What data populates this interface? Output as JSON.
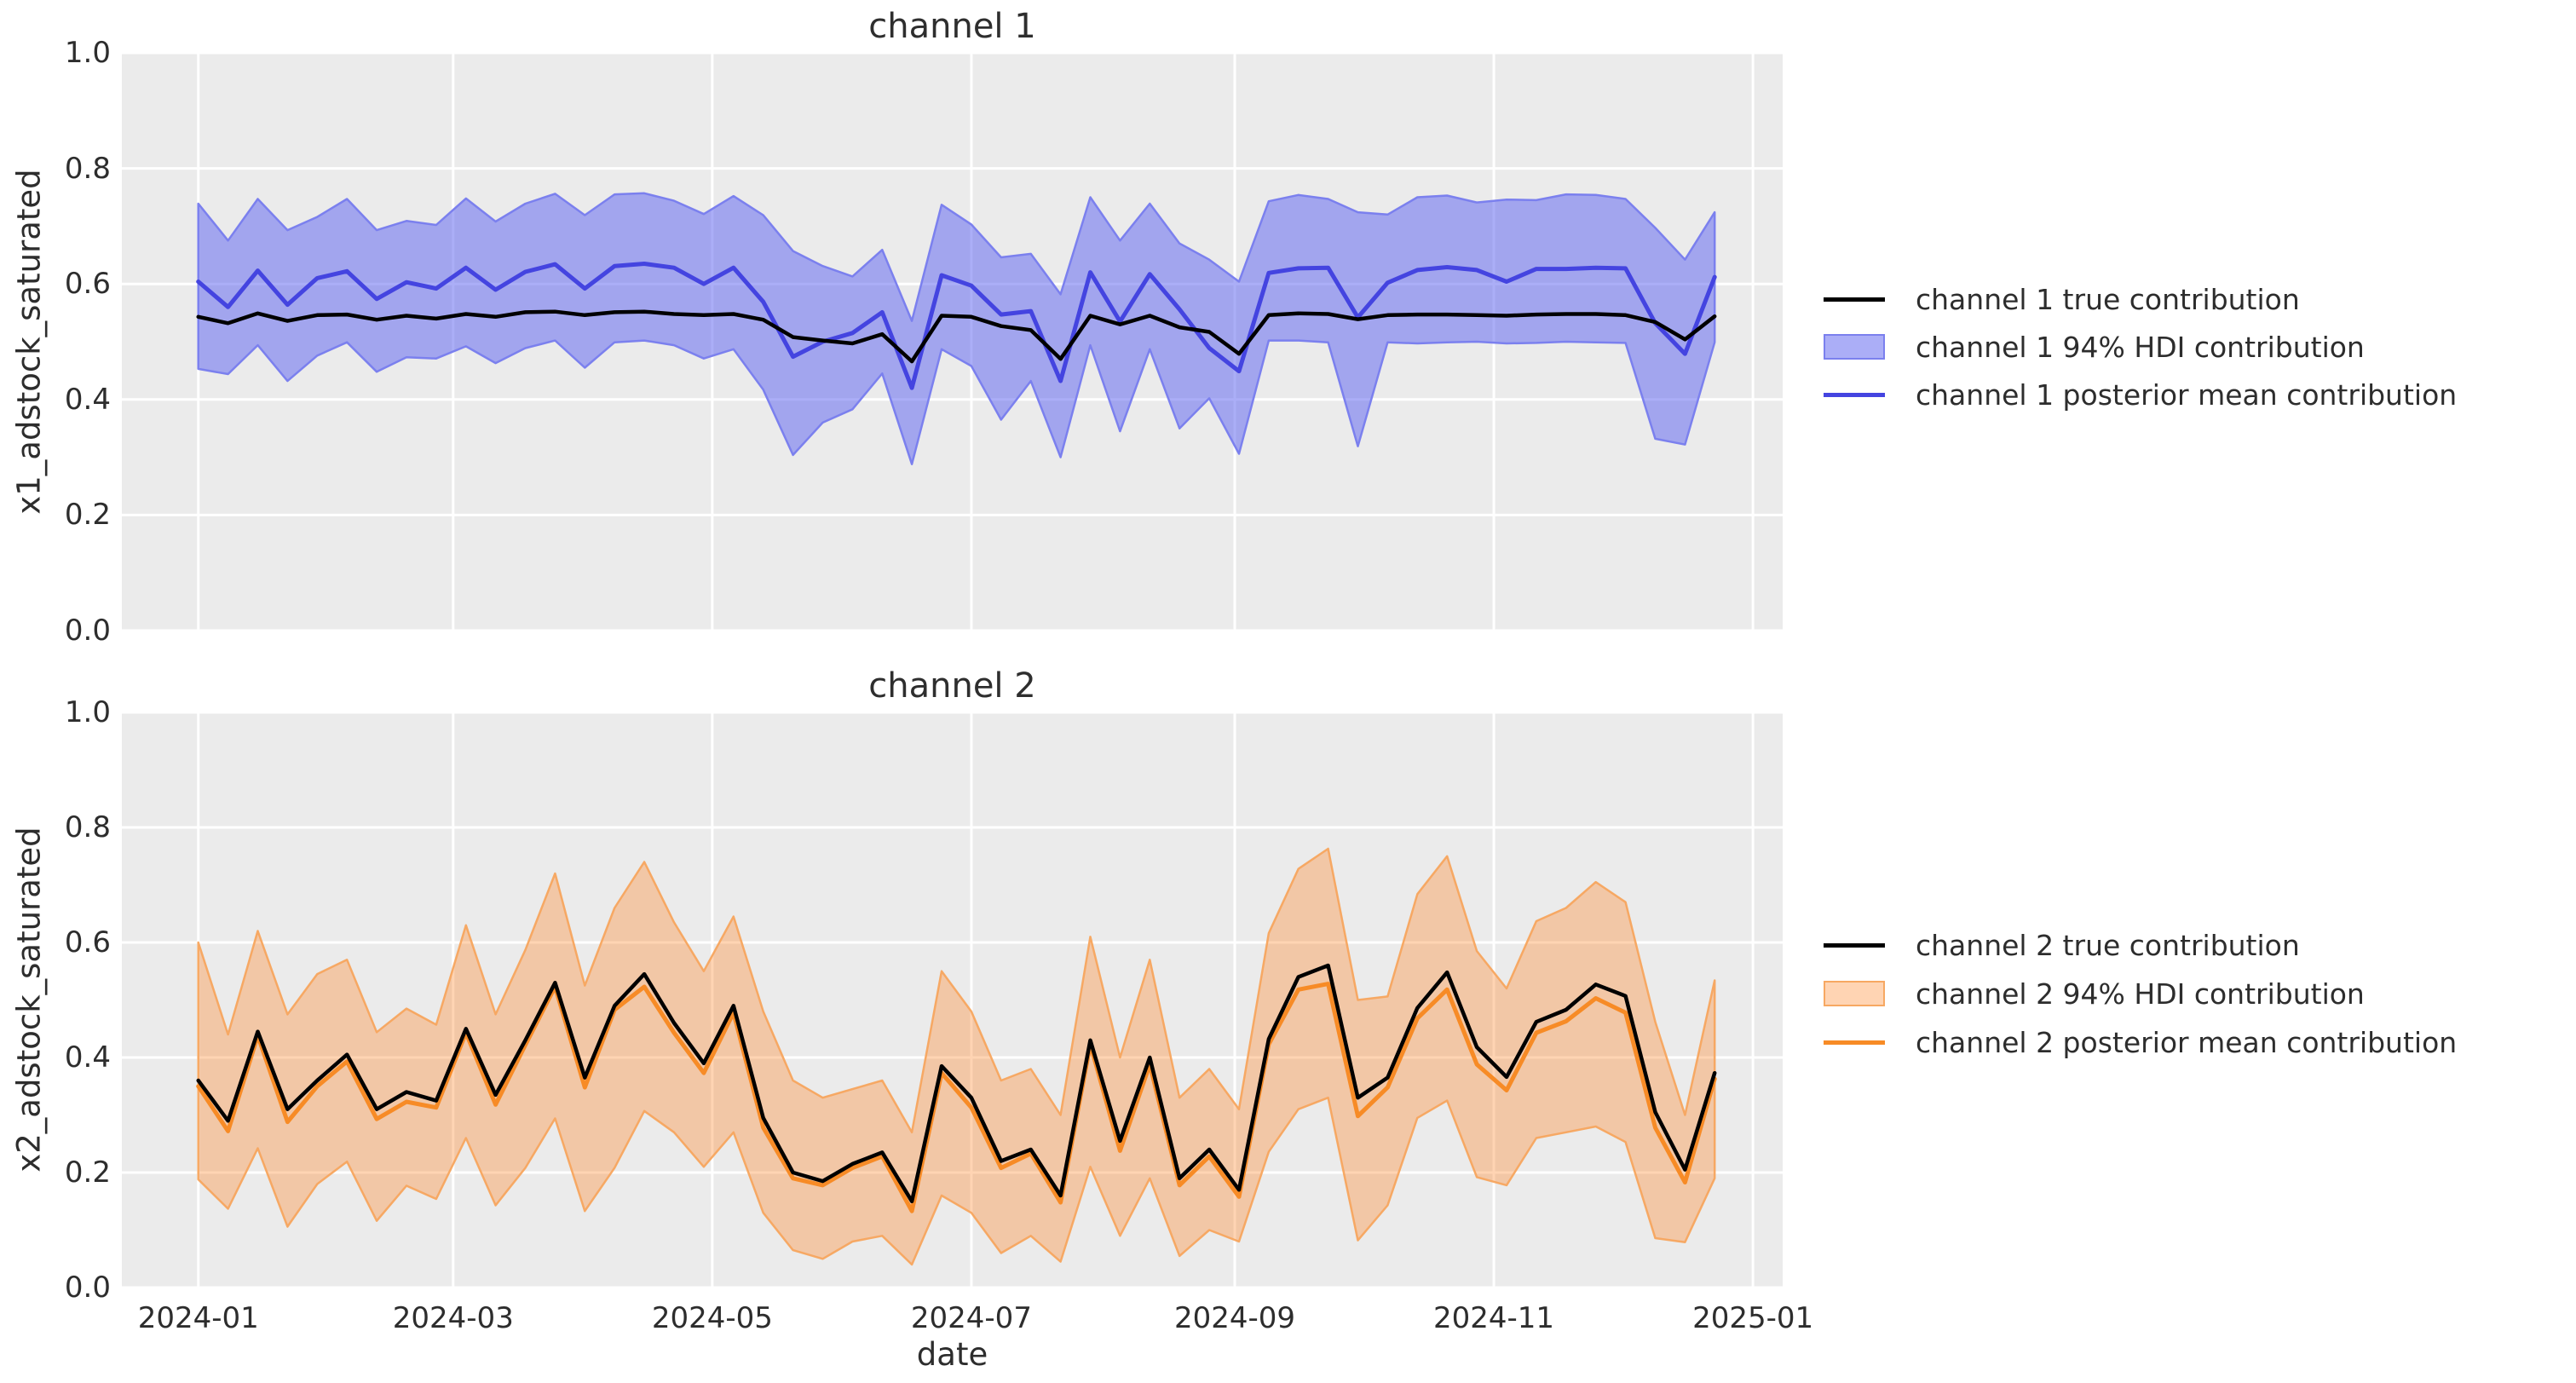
{
  "figure": {
    "xlabel": "date",
    "background": "#ffffff",
    "axes_background": "#ebebeb",
    "grid_color": "#ffffff",
    "text_color": "#2d2d2d",
    "true_line_color": "#000000"
  },
  "chart_data": [
    {
      "type": "line",
      "title": "channel 1",
      "ylabel": "x1_adstock_saturated",
      "ylim": [
        0.0,
        1.0
      ],
      "yticks": [
        "1.0",
        "0.8",
        "0.6",
        "0.4",
        "0.2",
        "0.0"
      ],
      "grid": true,
      "legend_position": "right",
      "legend": [
        "channel 1 true contribution",
        "channel 1 94% HDI contribution",
        "channel 1 posterior mean contribution"
      ],
      "mean_color": "#4444e0",
      "band_fill": "rgba(102,108,240,0.55)",
      "band_edge": "#7b80ee",
      "x": [
        "2024-01-01",
        "2024-01-08",
        "2024-01-15",
        "2024-01-22",
        "2024-01-29",
        "2024-02-05",
        "2024-02-12",
        "2024-02-19",
        "2024-02-26",
        "2024-03-04",
        "2024-03-11",
        "2024-03-18",
        "2024-03-25",
        "2024-04-01",
        "2024-04-08",
        "2024-04-15",
        "2024-04-22",
        "2024-04-29",
        "2024-05-06",
        "2024-05-13",
        "2024-05-20",
        "2024-05-27",
        "2024-06-03",
        "2024-06-10",
        "2024-06-17",
        "2024-06-24",
        "2024-07-01",
        "2024-07-08",
        "2024-07-15",
        "2024-07-22",
        "2024-07-29",
        "2024-08-05",
        "2024-08-12",
        "2024-08-19",
        "2024-08-26",
        "2024-09-02",
        "2024-09-09",
        "2024-09-16",
        "2024-09-23",
        "2024-09-30",
        "2024-10-07",
        "2024-10-14",
        "2024-10-21",
        "2024-10-28",
        "2024-11-04",
        "2024-11-11",
        "2024-11-18",
        "2024-11-25",
        "2024-12-02",
        "2024-12-09",
        "2024-12-16",
        "2024-12-23"
      ],
      "series": [
        {
          "name": "channel 1 true contribution",
          "values": [
            0.543,
            0.532,
            0.549,
            0.536,
            0.546,
            0.547,
            0.538,
            0.545,
            0.54,
            0.548,
            0.543,
            0.551,
            0.552,
            0.546,
            0.551,
            0.552,
            0.548,
            0.546,
            0.548,
            0.538,
            0.508,
            0.502,
            0.497,
            0.513,
            0.466,
            0.545,
            0.543,
            0.527,
            0.52,
            0.47,
            0.545,
            0.53,
            0.545,
            0.525,
            0.517,
            0.479,
            0.546,
            0.549,
            0.548,
            0.539,
            0.546,
            0.547,
            0.547,
            0.546,
            0.545,
            0.547,
            0.548,
            0.548,
            0.546,
            0.534,
            0.504,
            0.544
          ]
        },
        {
          "name": "channel 1 posterior mean contribution",
          "values": [
            0.604,
            0.56,
            0.623,
            0.564,
            0.61,
            0.622,
            0.574,
            0.603,
            0.592,
            0.628,
            0.59,
            0.621,
            0.634,
            0.592,
            0.631,
            0.635,
            0.628,
            0.6,
            0.628,
            0.569,
            0.474,
            0.5,
            0.515,
            0.551,
            0.42,
            0.615,
            0.597,
            0.547,
            0.553,
            0.432,
            0.62,
            0.535,
            0.617,
            0.556,
            0.489,
            0.449,
            0.619,
            0.627,
            0.628,
            0.542,
            0.602,
            0.624,
            0.629,
            0.624,
            0.604,
            0.626,
            0.626,
            0.628,
            0.627,
            0.532,
            0.479,
            0.612
          ]
        },
        {
          "name": "channel 1 94% HDI lower",
          "values": [
            0.453,
            0.444,
            0.494,
            0.432,
            0.476,
            0.499,
            0.448,
            0.473,
            0.471,
            0.492,
            0.463,
            0.489,
            0.502,
            0.455,
            0.499,
            0.502,
            0.494,
            0.471,
            0.487,
            0.417,
            0.304,
            0.36,
            0.383,
            0.445,
            0.288,
            0.487,
            0.458,
            0.365,
            0.432,
            0.3,
            0.494,
            0.345,
            0.487,
            0.35,
            0.402,
            0.306,
            0.502,
            0.502,
            0.499,
            0.319,
            0.499,
            0.497,
            0.499,
            0.5,
            0.497,
            0.498,
            0.5,
            0.499,
            0.498,
            0.332,
            0.322,
            0.499
          ]
        },
        {
          "name": "channel 1 94% HDI upper",
          "values": [
            0.739,
            0.675,
            0.747,
            0.693,
            0.716,
            0.747,
            0.693,
            0.709,
            0.702,
            0.748,
            0.708,
            0.739,
            0.756,
            0.719,
            0.755,
            0.757,
            0.744,
            0.721,
            0.752,
            0.719,
            0.657,
            0.631,
            0.613,
            0.659,
            0.536,
            0.737,
            0.703,
            0.646,
            0.652,
            0.582,
            0.75,
            0.675,
            0.739,
            0.67,
            0.642,
            0.604,
            0.743,
            0.754,
            0.747,
            0.724,
            0.72,
            0.75,
            0.753,
            0.741,
            0.746,
            0.745,
            0.755,
            0.754,
            0.747,
            0.697,
            0.642,
            0.724
          ]
        }
      ]
    },
    {
      "type": "line",
      "title": "channel 2",
      "ylabel": "x2_adstock_saturated",
      "ylim": [
        0.0,
        1.0
      ],
      "yticks": [
        "1.0",
        "0.8",
        "0.6",
        "0.4",
        "0.2",
        "0.0"
      ],
      "grid": true,
      "legend_position": "right",
      "legend": [
        "channel 2 true contribution",
        "channel 2 94% HDI contribution",
        "channel 2 posterior mean contribution"
      ],
      "mean_color": "#f78b26",
      "band_fill": "rgba(255,136,43,0.36)",
      "band_edge": "rgba(247,165,94,0.95)",
      "x": [
        "2024-01-01",
        "2024-01-08",
        "2024-01-15",
        "2024-01-22",
        "2024-01-29",
        "2024-02-05",
        "2024-02-12",
        "2024-02-19",
        "2024-02-26",
        "2024-03-04",
        "2024-03-11",
        "2024-03-18",
        "2024-03-25",
        "2024-04-01",
        "2024-04-08",
        "2024-04-15",
        "2024-04-22",
        "2024-04-29",
        "2024-05-06",
        "2024-05-13",
        "2024-05-20",
        "2024-05-27",
        "2024-06-03",
        "2024-06-10",
        "2024-06-17",
        "2024-06-24",
        "2024-07-01",
        "2024-07-08",
        "2024-07-15",
        "2024-07-22",
        "2024-07-29",
        "2024-08-05",
        "2024-08-12",
        "2024-08-19",
        "2024-08-26",
        "2024-09-02",
        "2024-09-09",
        "2024-09-16",
        "2024-09-23",
        "2024-09-30",
        "2024-10-07",
        "2024-10-14",
        "2024-10-21",
        "2024-10-28",
        "2024-11-04",
        "2024-11-11",
        "2024-11-18",
        "2024-11-25",
        "2024-12-02",
        "2024-12-09",
        "2024-12-16",
        "2024-12-23"
      ],
      "series": [
        {
          "name": "channel 2 true contribution",
          "values": [
            0.36,
            0.29,
            0.445,
            0.31,
            0.36,
            0.405,
            0.31,
            0.34,
            0.325,
            0.45,
            0.335,
            0.43,
            0.53,
            0.365,
            0.49,
            0.545,
            0.46,
            0.39,
            0.49,
            0.295,
            0.2,
            0.185,
            0.215,
            0.235,
            0.15,
            0.385,
            0.33,
            0.22,
            0.24,
            0.16,
            0.43,
            0.255,
            0.4,
            0.19,
            0.24,
            0.17,
            0.432,
            0.54,
            0.56,
            0.33,
            0.365,
            0.486,
            0.548,
            0.418,
            0.366,
            0.462,
            0.483,
            0.527,
            0.507,
            0.305,
            0.205,
            0.373
          ]
        },
        {
          "name": "channel 2 posterior mean contribution",
          "values": [
            0.35,
            0.272,
            0.438,
            0.288,
            0.35,
            0.393,
            0.293,
            0.323,
            0.313,
            0.443,
            0.318,
            0.422,
            0.523,
            0.348,
            0.483,
            0.523,
            0.443,
            0.373,
            0.478,
            0.278,
            0.19,
            0.178,
            0.208,
            0.228,
            0.133,
            0.373,
            0.313,
            0.208,
            0.233,
            0.148,
            0.423,
            0.238,
            0.388,
            0.178,
            0.228,
            0.158,
            0.423,
            0.518,
            0.528,
            0.298,
            0.348,
            0.468,
            0.518,
            0.388,
            0.343,
            0.443,
            0.463,
            0.503,
            0.478,
            0.278,
            0.183,
            0.363
          ]
        },
        {
          "name": "channel 2 94% HDI lower",
          "values": [
            0.188,
            0.137,
            0.242,
            0.106,
            0.18,
            0.219,
            0.116,
            0.177,
            0.154,
            0.26,
            0.143,
            0.208,
            0.294,
            0.133,
            0.208,
            0.307,
            0.27,
            0.21,
            0.27,
            0.13,
            0.065,
            0.05,
            0.08,
            0.09,
            0.04,
            0.16,
            0.13,
            0.06,
            0.09,
            0.045,
            0.21,
            0.09,
            0.19,
            0.055,
            0.1,
            0.08,
            0.236,
            0.31,
            0.33,
            0.082,
            0.143,
            0.295,
            0.325,
            0.192,
            0.178,
            0.26,
            0.27,
            0.28,
            0.253,
            0.086,
            0.079,
            0.19
          ]
        },
        {
          "name": "channel 2 94% HDI upper",
          "values": [
            0.6,
            0.44,
            0.62,
            0.475,
            0.545,
            0.57,
            0.444,
            0.485,
            0.457,
            0.63,
            0.475,
            0.587,
            0.72,
            0.525,
            0.66,
            0.74,
            0.635,
            0.55,
            0.645,
            0.48,
            0.36,
            0.33,
            0.345,
            0.36,
            0.27,
            0.55,
            0.48,
            0.36,
            0.38,
            0.3,
            0.61,
            0.4,
            0.57,
            0.33,
            0.38,
            0.31,
            0.616,
            0.728,
            0.763,
            0.5,
            0.506,
            0.684,
            0.75,
            0.585,
            0.52,
            0.637,
            0.66,
            0.705,
            0.67,
            0.462,
            0.3,
            0.534
          ]
        }
      ],
      "xticks": [
        {
          "label": "2024-01",
          "day": 0
        },
        {
          "label": "2024-03",
          "day": 60
        },
        {
          "label": "2024-05",
          "day": 121
        },
        {
          "label": "2024-07",
          "day": 182
        },
        {
          "label": "2024-09",
          "day": 244
        },
        {
          "label": "2024-11",
          "day": 305
        },
        {
          "label": "2025-01",
          "day": 366
        }
      ]
    }
  ]
}
